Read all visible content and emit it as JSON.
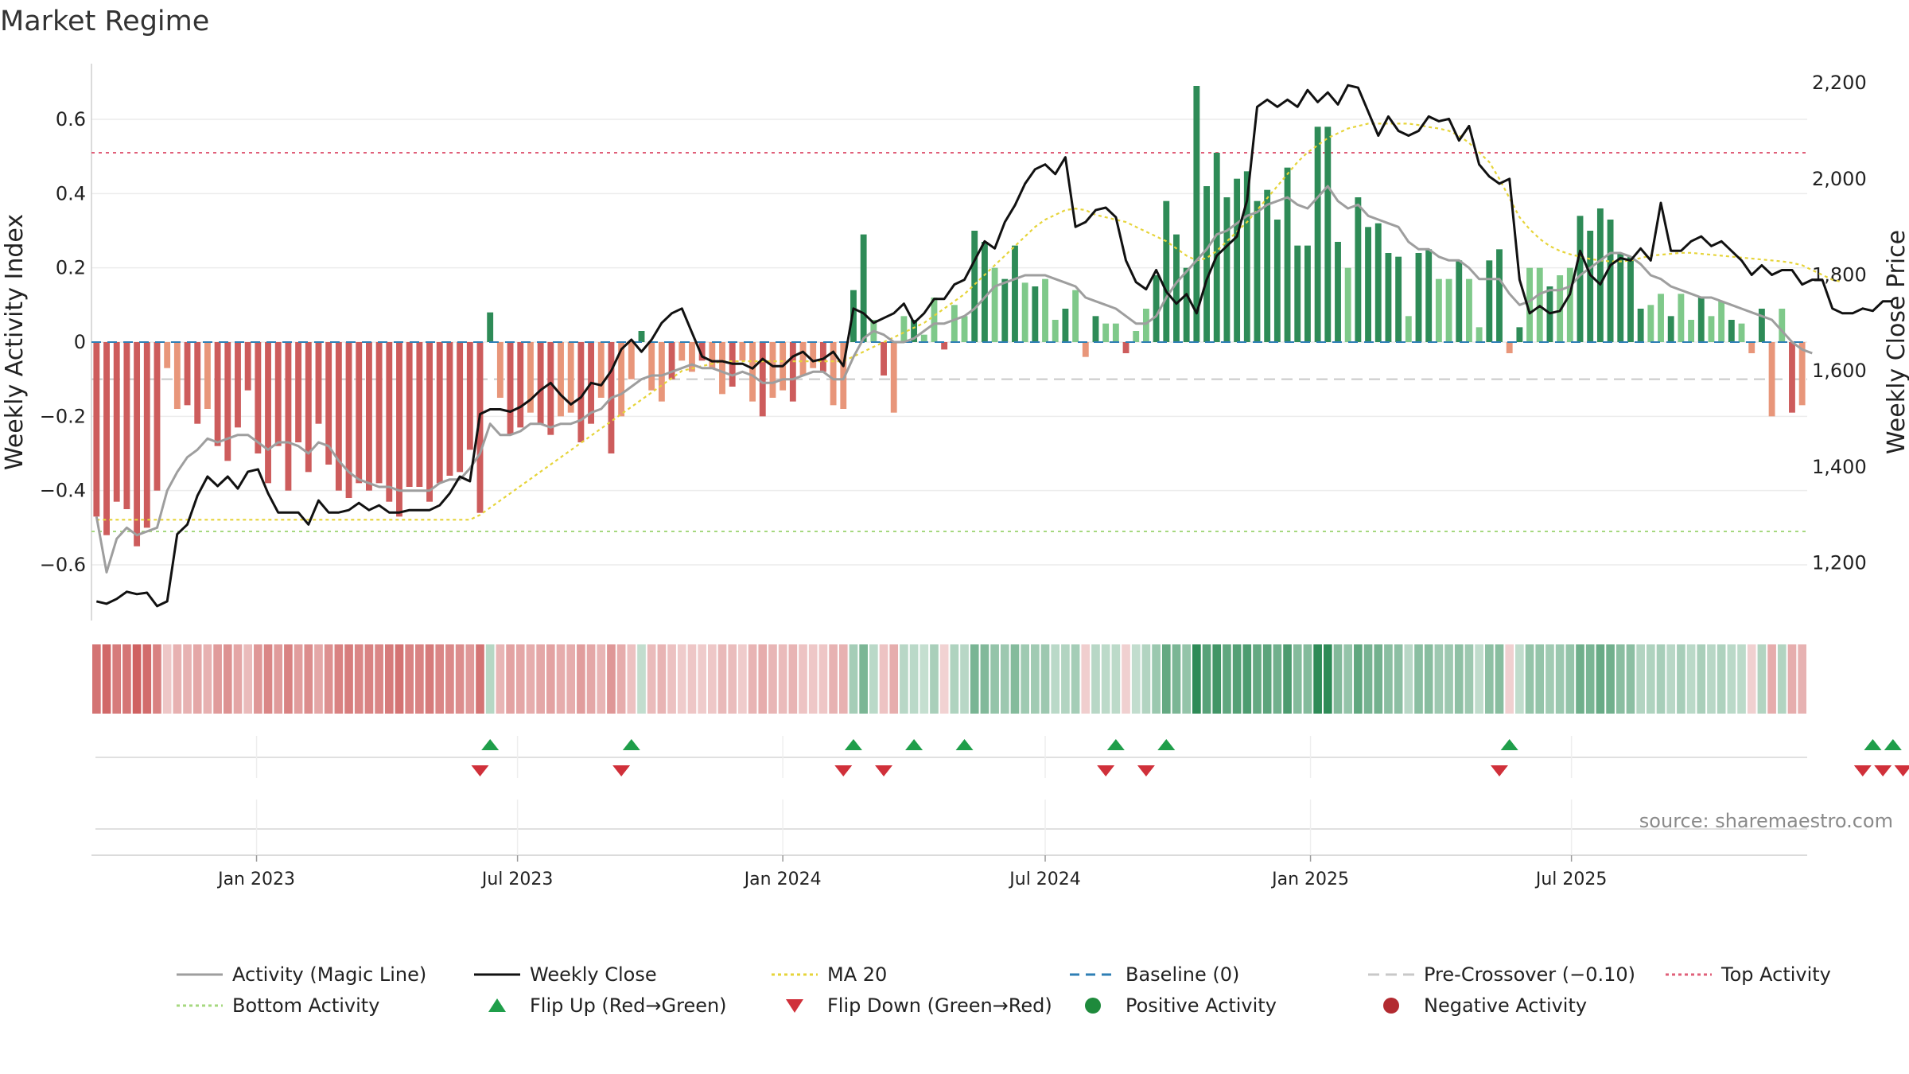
{
  "chart_data": {
    "type": "bar",
    "title": "Market Regime",
    "y_left_label": "Weekly Activity Index",
    "y_right_label": "Weekly Close Price",
    "y_left_ticks": [
      "0.6",
      "0.4",
      "0.2",
      "0",
      "−0.2",
      "−0.4",
      "−0.6"
    ],
    "y_left_tick_values": [
      0.6,
      0.4,
      0.2,
      0,
      -0.2,
      -0.4,
      -0.6
    ],
    "y_right_ticks": [
      "2,200",
      "2,000",
      "1,800",
      "1,600",
      "1,400",
      "1,200"
    ],
    "y_right_tick_values": [
      2200,
      2000,
      1800,
      1600,
      1400,
      1200
    ],
    "y_left_range": [
      -0.75,
      0.75
    ],
    "y_right_range": [
      1080,
      2240
    ],
    "x_ticks": [
      "Jan 2023",
      "Jul 2023",
      "Jan 2024",
      "Jul 2024",
      "Jan 2025",
      "Jul 2025"
    ],
    "x_tick_dates": [
      "2023-01-01",
      "2023-07-01",
      "2024-01-01",
      "2024-07-01",
      "2025-01-01",
      "2025-07-01"
    ],
    "first_week": "2022-09-12",
    "activity": [
      -0.47,
      -0.52,
      -0.43,
      -0.45,
      -0.55,
      -0.5,
      -0.4,
      -0.07,
      -0.18,
      -0.17,
      -0.22,
      -0.18,
      -0.28,
      -0.32,
      -0.23,
      -0.13,
      -0.3,
      -0.38,
      -0.28,
      -0.4,
      -0.27,
      -0.35,
      -0.22,
      -0.33,
      -0.4,
      -0.42,
      -0.38,
      -0.4,
      -0.38,
      -0.43,
      -0.47,
      -0.39,
      -0.39,
      -0.43,
      -0.38,
      -0.36,
      -0.35,
      -0.29,
      -0.46,
      0.08,
      -0.15,
      -0.25,
      -0.23,
      -0.19,
      -0.22,
      -0.25,
      -0.2,
      -0.19,
      -0.27,
      -0.22,
      -0.15,
      -0.3,
      -0.2,
      -0.1,
      0.03,
      -0.13,
      -0.16,
      -0.1,
      -0.05,
      -0.08,
      -0.05,
      -0.07,
      -0.14,
      -0.12,
      -0.05,
      -0.16,
      -0.2,
      -0.15,
      -0.13,
      -0.16,
      -0.09,
      -0.07,
      -0.08,
      -0.17,
      -0.18,
      0.14,
      0.29,
      0.06,
      -0.09,
      -0.19,
      0.07,
      0.06,
      0.02,
      0.12,
      -0.02,
      0.1,
      0.07,
      0.3,
      0.27,
      0.2,
      0.17,
      0.26,
      0.16,
      0.15,
      0.17,
      0.06,
      0.09,
      0.14,
      -0.04,
      0.07,
      0.05,
      0.05,
      -0.03,
      0.03,
      0.09,
      0.18,
      0.38,
      0.29,
      0.2,
      0.69,
      0.42,
      0.51,
      0.39,
      0.44,
      0.46,
      0.38,
      0.41,
      0.33,
      0.47,
      0.26,
      0.26,
      0.58,
      0.58,
      0.27,
      0.2,
      0.39,
      0.31,
      0.32,
      0.24,
      0.23,
      0.07,
      0.24,
      0.25,
      0.17,
      0.17,
      0.22,
      0.17,
      0.04,
      0.22,
      0.25,
      -0.03,
      0.04,
      0.2,
      0.2,
      0.15,
      0.18,
      0.2,
      0.34,
      0.3,
      0.36,
      0.33,
      0.24,
      0.23,
      0.09,
      0.1,
      0.13,
      0.07,
      0.13,
      0.06,
      0.12,
      0.07,
      0.11,
      0.06,
      0.05,
      -0.03,
      0.09,
      -0.2,
      0.09,
      -0.19,
      -0.17
    ],
    "magic_line": [
      -0.47,
      -0.62,
      -0.53,
      -0.5,
      -0.52,
      -0.51,
      -0.5,
      -0.4,
      -0.35,
      -0.31,
      -0.29,
      -0.26,
      -0.27,
      -0.26,
      -0.25,
      -0.25,
      -0.27,
      -0.29,
      -0.27,
      -0.27,
      -0.28,
      -0.3,
      -0.27,
      -0.28,
      -0.32,
      -0.35,
      -0.37,
      -0.38,
      -0.39,
      -0.39,
      -0.4,
      -0.4,
      -0.4,
      -0.4,
      -0.38,
      -0.37,
      -0.37,
      -0.34,
      -0.3,
      -0.22,
      -0.25,
      -0.25,
      -0.24,
      -0.22,
      -0.22,
      -0.23,
      -0.22,
      -0.22,
      -0.21,
      -0.19,
      -0.18,
      -0.15,
      -0.14,
      -0.12,
      -0.1,
      -0.09,
      -0.09,
      -0.08,
      -0.07,
      -0.06,
      -0.07,
      -0.07,
      -0.08,
      -0.09,
      -0.08,
      -0.09,
      -0.11,
      -0.11,
      -0.1,
      -0.1,
      -0.09,
      -0.08,
      -0.08,
      -0.1,
      -0.1,
      -0.04,
      0.01,
      0.03,
      0.02,
      0.0,
      0.0,
      0.01,
      0.03,
      0.05,
      0.05,
      0.06,
      0.07,
      0.09,
      0.12,
      0.15,
      0.16,
      0.17,
      0.18,
      0.18,
      0.18,
      0.17,
      0.16,
      0.15,
      0.12,
      0.11,
      0.1,
      0.09,
      0.07,
      0.05,
      0.05,
      0.07,
      0.12,
      0.16,
      0.19,
      0.22,
      0.25,
      0.29,
      0.3,
      0.32,
      0.34,
      0.35,
      0.37,
      0.38,
      0.39,
      0.37,
      0.36,
      0.39,
      0.42,
      0.38,
      0.36,
      0.37,
      0.34,
      0.33,
      0.32,
      0.31,
      0.27,
      0.25,
      0.25,
      0.23,
      0.22,
      0.22,
      0.2,
      0.17,
      0.17,
      0.17,
      0.13,
      0.1,
      0.11,
      0.13,
      0.14,
      0.14,
      0.15,
      0.18,
      0.2,
      0.22,
      0.24,
      0.24,
      0.23,
      0.21,
      0.18,
      0.17,
      0.15,
      0.14,
      0.13,
      0.12,
      0.12,
      0.11,
      0.1,
      0.09,
      0.08,
      0.07,
      0.06,
      0.03,
      0.0,
      -0.02,
      -0.03
    ],
    "weekly_close": [
      1120,
      1115,
      1125,
      1140,
      1135,
      1138,
      1110,
      1120,
      1260,
      1280,
      1340,
      1380,
      1360,
      1380,
      1355,
      1390,
      1395,
      1345,
      1305,
      1305,
      1305,
      1280,
      1330,
      1305,
      1305,
      1310,
      1325,
      1310,
      1320,
      1305,
      1305,
      1310,
      1310,
      1310,
      1320,
      1345,
      1380,
      1370,
      1510,
      1520,
      1520,
      1515,
      1525,
      1540,
      1560,
      1575,
      1550,
      1530,
      1545,
      1575,
      1570,
      1600,
      1645,
      1665,
      1640,
      1665,
      1700,
      1720,
      1730,
      1680,
      1630,
      1620,
      1620,
      1615,
      1615,
      1605,
      1625,
      1610,
      1610,
      1630,
      1640,
      1620,
      1625,
      1640,
      1610,
      1730,
      1720,
      1700,
      1710,
      1720,
      1740,
      1700,
      1720,
      1750,
      1750,
      1780,
      1790,
      1830,
      1870,
      1855,
      1910,
      1945,
      1990,
      2020,
      2030,
      2010,
      2045,
      1900,
      1910,
      1935,
      1940,
      1920,
      1830,
      1785,
      1770,
      1810,
      1765,
      1740,
      1760,
      1720,
      1790,
      1840,
      1860,
      1880,
      1955,
      2150,
      2165,
      2150,
      2165,
      2150,
      2185,
      2160,
      2180,
      2155,
      2195,
      2190,
      2140,
      2090,
      2130,
      2100,
      2090,
      2100,
      2130,
      2120,
      2125,
      2080,
      2110,
      2030,
      2005,
      1990,
      2000,
      1790,
      1720,
      1735,
      1720,
      1725,
      1760,
      1850,
      1800,
      1780,
      1820,
      1835,
      1830,
      1855,
      1830,
      1950,
      1850,
      1850,
      1870,
      1880,
      1860,
      1870,
      1850,
      1830,
      1800,
      1820,
      1800,
      1810,
      1810,
      1780,
      1790,
      1790,
      1730,
      1720,
      1720,
      1730,
      1725,
      1745,
      1745
    ],
    "ma20": [
      1290,
      1290,
      1290,
      1290,
      1290,
      1290,
      1290,
      1290,
      1290,
      1290,
      1290,
      1290,
      1290,
      1290,
      1290,
      1290,
      1290,
      1290,
      1290,
      1290,
      1290,
      1290,
      1290,
      1290,
      1290,
      1290,
      1290,
      1290,
      1290,
      1290,
      1290,
      1290,
      1290,
      1290,
      1290,
      1290,
      1290,
      1290,
      1300,
      1315,
      1330,
      1345,
      1360,
      1375,
      1390,
      1405,
      1420,
      1435,
      1450,
      1465,
      1480,
      1495,
      1510,
      1525,
      1540,
      1555,
      1570,
      1585,
      1600,
      1605,
      1610,
      1615,
      1620,
      1620,
      1620,
      1620,
      1620,
      1620,
      1620,
      1620,
      1620,
      1620,
      1620,
      1620,
      1620,
      1630,
      1640,
      1650,
      1660,
      1670,
      1680,
      1690,
      1700,
      1715,
      1730,
      1745,
      1760,
      1780,
      1800,
      1820,
      1840,
      1860,
      1880,
      1900,
      1915,
      1925,
      1935,
      1938,
      1935,
      1925,
      1920,
      1915,
      1910,
      1900,
      1890,
      1880,
      1870,
      1855,
      1840,
      1830,
      1835,
      1850,
      1870,
      1890,
      1910,
      1935,
      1960,
      1985,
      2010,
      2035,
      2055,
      2070,
      2085,
      2095,
      2105,
      2110,
      2115,
      2115,
      2115,
      2115,
      2115,
      2112,
      2108,
      2105,
      2100,
      2090,
      2075,
      2055,
      2035,
      2000,
      1960,
      1920,
      1895,
      1875,
      1860,
      1850,
      1843,
      1838,
      1833,
      1830,
      1828,
      1828,
      1830,
      1835,
      1840,
      1842,
      1844,
      1846,
      1846,
      1844,
      1842,
      1840,
      1838,
      1836,
      1834,
      1832,
      1830,
      1828,
      1825,
      1820,
      1810,
      1800,
      1790,
      1785
    ],
    "thresholds": {
      "top_activity": 0.51,
      "bottom_activity": -0.51,
      "pre_crossover": -0.1,
      "baseline": 0
    },
    "flip_up_weeks": [
      39,
      53,
      75,
      81,
      86,
      101,
      106,
      140,
      176,
      178
    ],
    "flip_down_weeks": [
      38,
      52,
      74,
      78,
      100,
      104,
      139,
      175,
      177,
      179
    ],
    "legend": [
      {
        "label": "Activity (Magic Line)",
        "kind": "line",
        "color": "#9e9e9e",
        "dash": ""
      },
      {
        "label": "Weekly Close",
        "kind": "line",
        "color": "#111111",
        "dash": ""
      },
      {
        "label": "MA 20",
        "kind": "line",
        "color": "#e6d43a",
        "dash": "4,4"
      },
      {
        "label": "Baseline (0)",
        "kind": "line",
        "color": "#2f7fb5",
        "dash": "12,8"
      },
      {
        "label": "Pre-Crossover (−0.10)",
        "kind": "line",
        "color": "#c8c8c8",
        "dash": "14,8"
      },
      {
        "label": "Top Activity",
        "kind": "line",
        "color": "#e0607a",
        "dash": "4,4"
      },
      {
        "label": "Bottom Activity",
        "kind": "line",
        "color": "#a6d87f",
        "dash": "4,4"
      },
      {
        "label": "Flip Up (Red→Green)",
        "kind": "triangle-up",
        "color": "#1f9e4a",
        "dash": ""
      },
      {
        "label": "Flip Down (Green→Red)",
        "kind": "triangle-down",
        "color": "#d0303a",
        "dash": ""
      },
      {
        "label": "Positive Activity",
        "kind": "dot",
        "color": "#1e8a3c",
        "dash": ""
      },
      {
        "label": "Negative Activity",
        "kind": "dot",
        "color": "#b22a30",
        "dash": ""
      }
    ],
    "source": "source: sharemaestro.com",
    "colors": {
      "pos_dark": "#2e8b57",
      "pos_light": "#7fc98a",
      "neg_dark": "#cd5c5c",
      "neg_light": "#e8967a",
      "magic_line": "#9e9e9e",
      "close": "#111111",
      "ma20": "#e6d43a",
      "baseline": "#2f7fb5",
      "pre_crossover": "#c8c8c8",
      "top": "#e0607a",
      "bottom": "#a6d87f",
      "flip_up": "#1f9e4a",
      "flip_down": "#d0303a"
    }
  }
}
